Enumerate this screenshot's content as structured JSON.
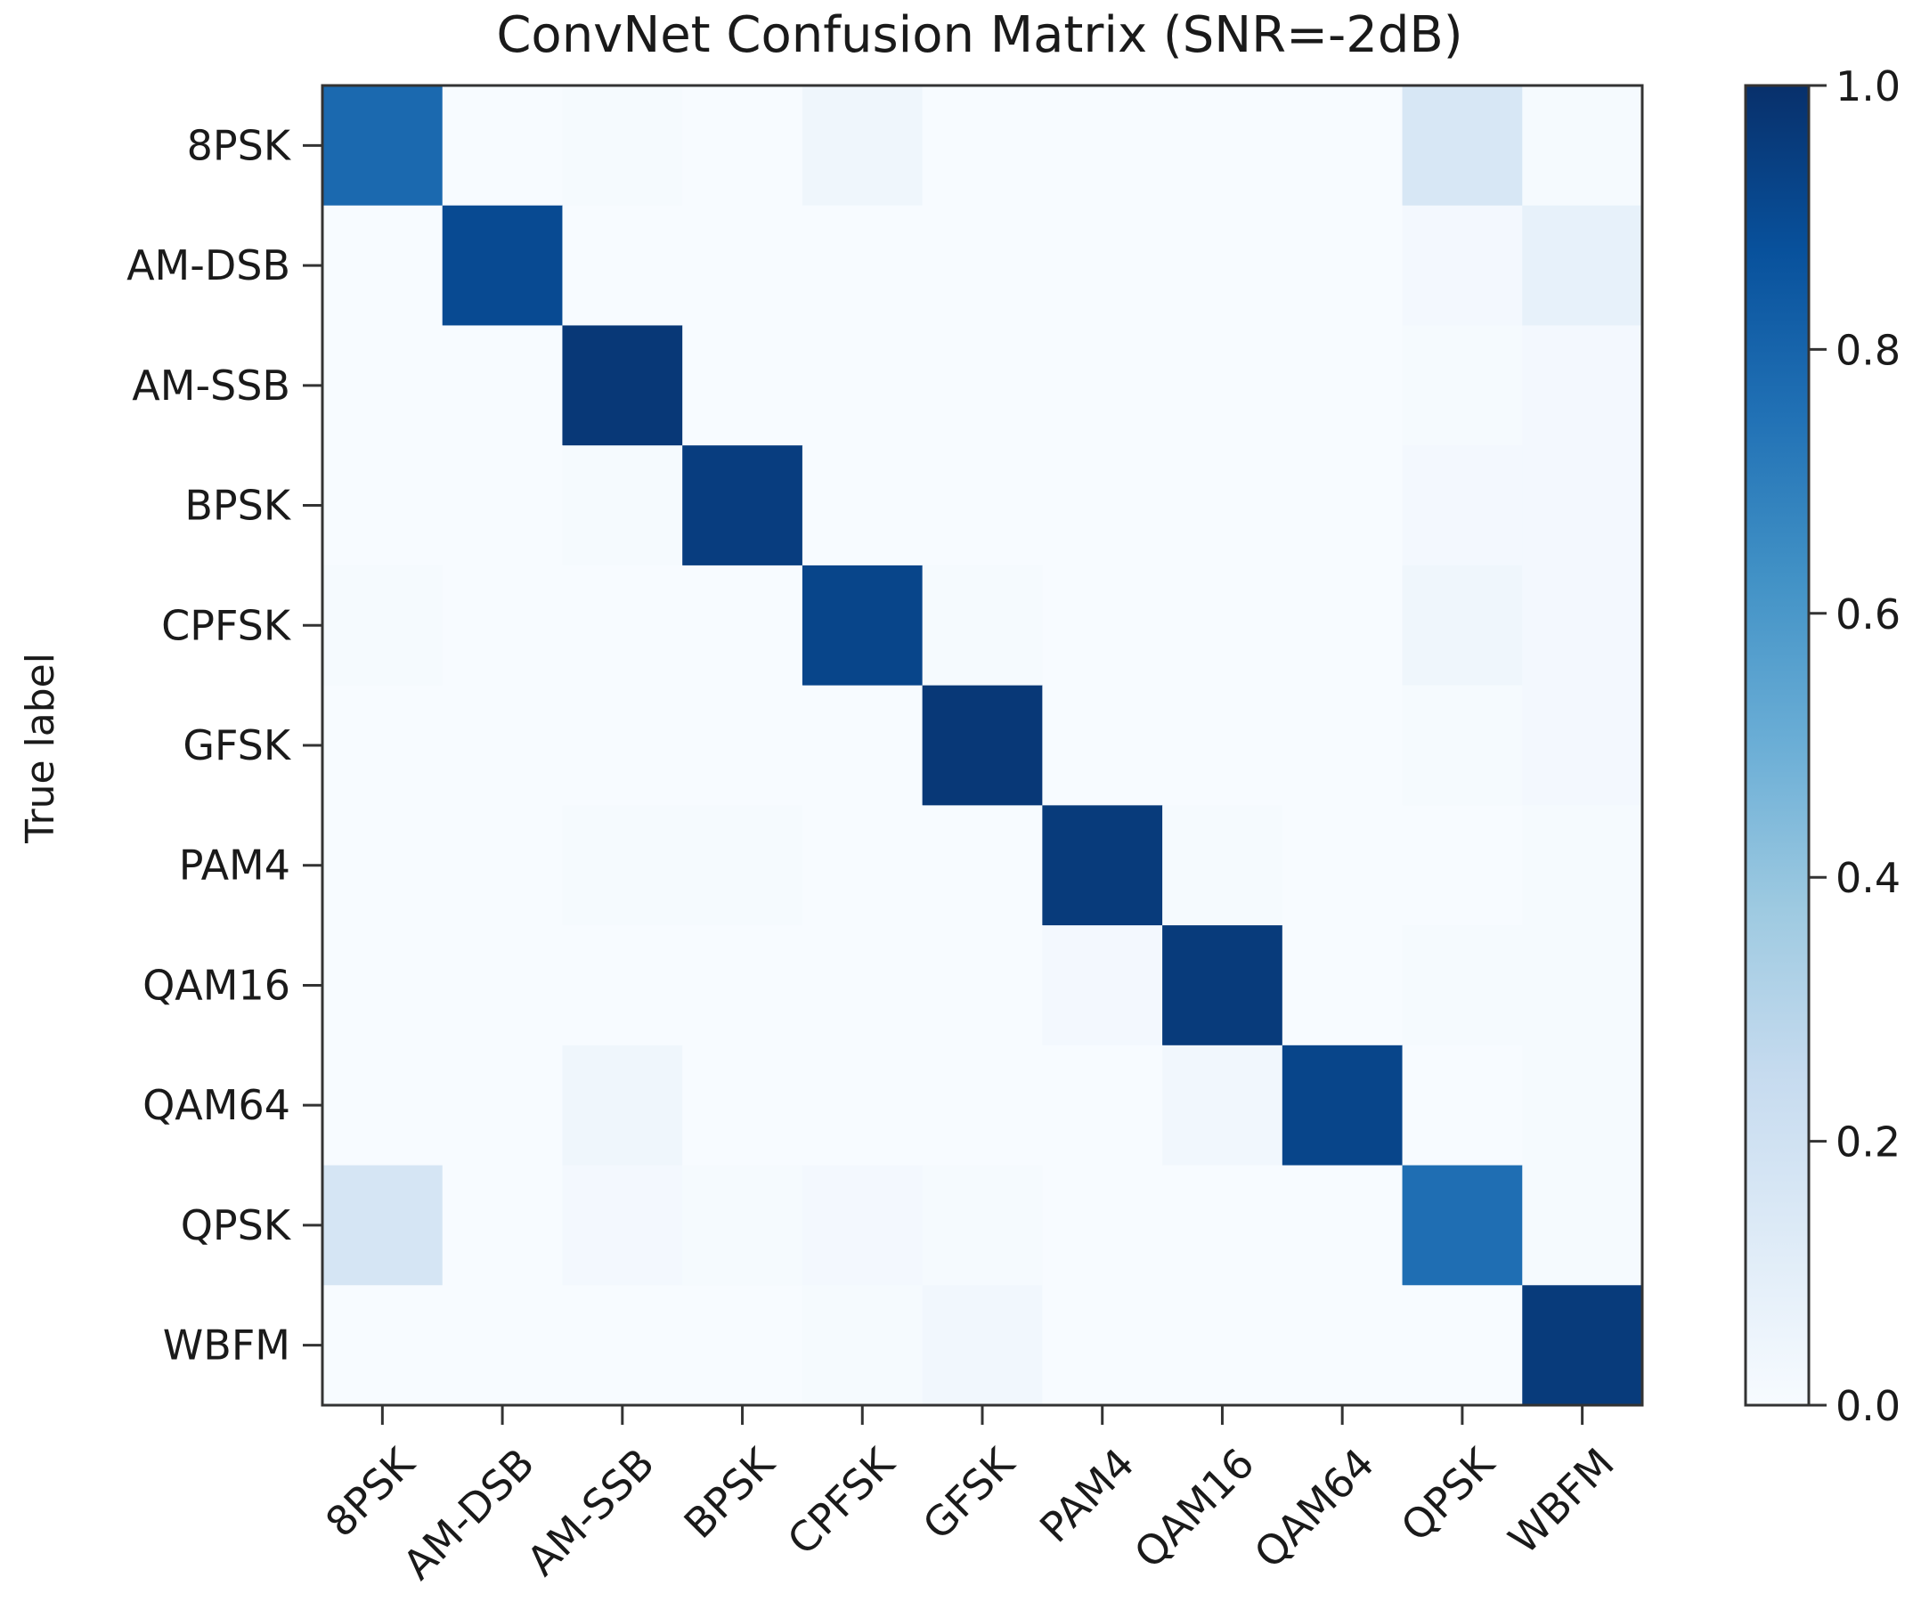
{
  "chart_data": {
    "type": "heatmap",
    "title": "ConvNet Confusion Matrix (SNR=-2dB)",
    "ylabel": "True label",
    "xlabel": "",
    "categories": [
      "8PSK",
      "AM-DSB",
      "AM-SSB",
      "BPSK",
      "CPFSK",
      "GFSK",
      "PAM4",
      "QAM16",
      "QAM64",
      "QPSK",
      "WBFM"
    ],
    "matrix": [
      [
        0.78,
        0.0,
        0.01,
        0.0,
        0.04,
        0.0,
        0.0,
        0.0,
        0.0,
        0.16,
        0.01
      ],
      [
        0.0,
        0.9,
        0.0,
        0.0,
        0.0,
        0.0,
        0.0,
        0.0,
        0.0,
        0.02,
        0.08
      ],
      [
        0.0,
        0.0,
        0.97,
        0.0,
        0.0,
        0.0,
        0.0,
        0.0,
        0.0,
        0.01,
        0.02
      ],
      [
        0.0,
        0.0,
        0.01,
        0.95,
        0.0,
        0.0,
        0.0,
        0.0,
        0.0,
        0.02,
        0.02
      ],
      [
        0.01,
        0.0,
        0.0,
        0.0,
        0.92,
        0.01,
        0.0,
        0.0,
        0.0,
        0.04,
        0.02
      ],
      [
        0.0,
        0.0,
        0.0,
        0.0,
        0.0,
        0.97,
        0.0,
        0.0,
        0.0,
        0.01,
        0.02
      ],
      [
        0.0,
        0.0,
        0.01,
        0.01,
        0.0,
        0.0,
        0.96,
        0.01,
        0.0,
        0.0,
        0.01
      ],
      [
        0.0,
        0.0,
        0.0,
        0.0,
        0.0,
        0.0,
        0.02,
        0.96,
        0.0,
        0.01,
        0.01
      ],
      [
        0.0,
        0.0,
        0.04,
        0.0,
        0.0,
        0.0,
        0.0,
        0.03,
        0.92,
        0.0,
        0.01
      ],
      [
        0.17,
        0.0,
        0.02,
        0.01,
        0.02,
        0.01,
        0.0,
        0.0,
        0.0,
        0.76,
        0.01
      ],
      [
        0.0,
        0.0,
        0.0,
        0.0,
        0.01,
        0.03,
        0.0,
        0.0,
        0.0,
        0.0,
        0.96
      ]
    ],
    "colorbar": {
      "min": 0.0,
      "max": 1.0,
      "ticks": [
        0.0,
        0.2,
        0.4,
        0.6,
        0.8,
        1.0
      ],
      "tick_labels": [
        "0.0",
        "0.2",
        "0.4",
        "0.6",
        "0.8",
        "1.0"
      ],
      "colormap": "Blues"
    },
    "colors": {
      "blues_stops": [
        "#f7fbff",
        "#deebf7",
        "#c6dbef",
        "#9ecae1",
        "#6baed6",
        "#4292c6",
        "#2171b5",
        "#08519c",
        "#08306b"
      ],
      "axis": "#333333",
      "text": "#1a1a1a"
    }
  }
}
